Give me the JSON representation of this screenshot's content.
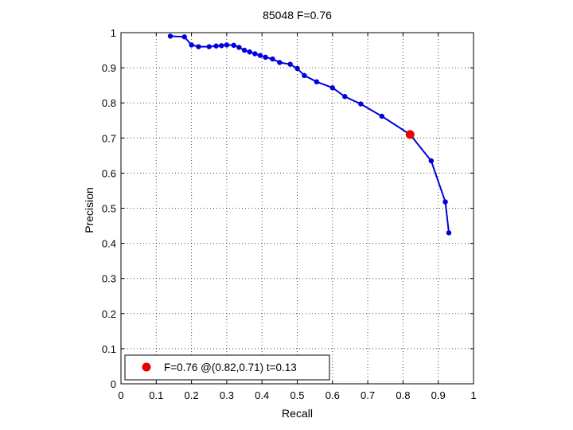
{
  "chart_data": {
    "type": "line",
    "title": "85048 F=0.76",
    "xlabel": "Recall",
    "ylabel": "Precision",
    "xlim": [
      0,
      1
    ],
    "ylim": [
      0,
      1
    ],
    "grid": true,
    "xticks": [
      "0",
      "0.1",
      "0.2",
      "0.3",
      "0.4",
      "0.5",
      "0.6",
      "0.7",
      "0.8",
      "0.9",
      "1"
    ],
    "yticks": [
      "0",
      "0.1",
      "0.2",
      "0.3",
      "0.4",
      "0.5",
      "0.6",
      "0.7",
      "0.8",
      "0.9",
      "1"
    ],
    "series": [
      {
        "color": "#0000dd",
        "x": [
          0.14,
          0.18,
          0.2,
          0.22,
          0.25,
          0.27,
          0.285,
          0.3,
          0.32,
          0.335,
          0.35,
          0.365,
          0.38,
          0.395,
          0.41,
          0.43,
          0.45,
          0.48,
          0.5,
          0.52,
          0.555,
          0.6,
          0.635,
          0.68,
          0.74,
          0.82,
          0.88,
          0.92,
          0.93
        ],
        "y": [
          0.99,
          0.988,
          0.965,
          0.96,
          0.96,
          0.962,
          0.963,
          0.965,
          0.964,
          0.958,
          0.95,
          0.945,
          0.94,
          0.935,
          0.93,
          0.925,
          0.915,
          0.91,
          0.898,
          0.878,
          0.86,
          0.843,
          0.818,
          0.797,
          0.762,
          0.71,
          0.635,
          0.518,
          0.43
        ]
      }
    ],
    "highlight": {
      "x": 0.82,
      "y": 0.71,
      "color": "#ee0000"
    },
    "legend": {
      "text": "F=0.76 @(0.82,0.71) t=0.13",
      "position": "lower-left"
    }
  }
}
